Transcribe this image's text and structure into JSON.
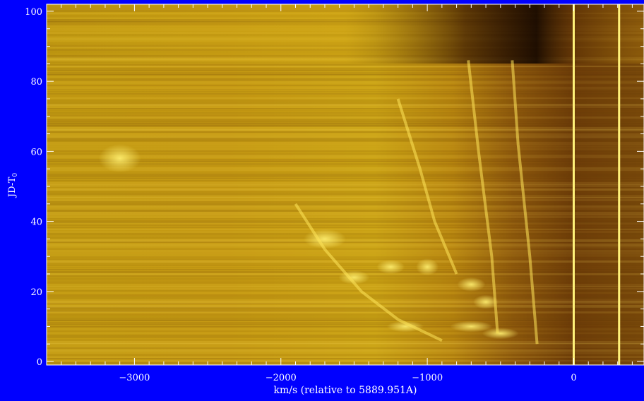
{
  "chart_data": {
    "type": "heatmap",
    "title": "",
    "xlabel": "km/s (relative to 5889.951A)",
    "ylabel_main": "JD-T",
    "ylabel_sub": "0",
    "xlim": [
      -3600,
      480
    ],
    "ylim": [
      -1,
      102
    ],
    "x_ticks": [
      -3000,
      -2000,
      -1000,
      0
    ],
    "x_tick_labels": [
      "−3000",
      "−2000",
      "−1000",
      "0"
    ],
    "y_ticks": [
      0,
      20,
      40,
      60,
      80,
      100
    ],
    "y_tick_labels": [
      "0",
      "20",
      "40",
      "60",
      "80",
      "100"
    ],
    "x_minor_step": 100,
    "y_minor_step": 5,
    "colors": {
      "background": "#0000ff",
      "axis": "#ffffff",
      "colormap_low": "#1a0a00",
      "colormap_mid": "#a56d0c",
      "colormap_high": "#ffe85a"
    },
    "vertical_lines_x": [
      0,
      310
    ]
  }
}
